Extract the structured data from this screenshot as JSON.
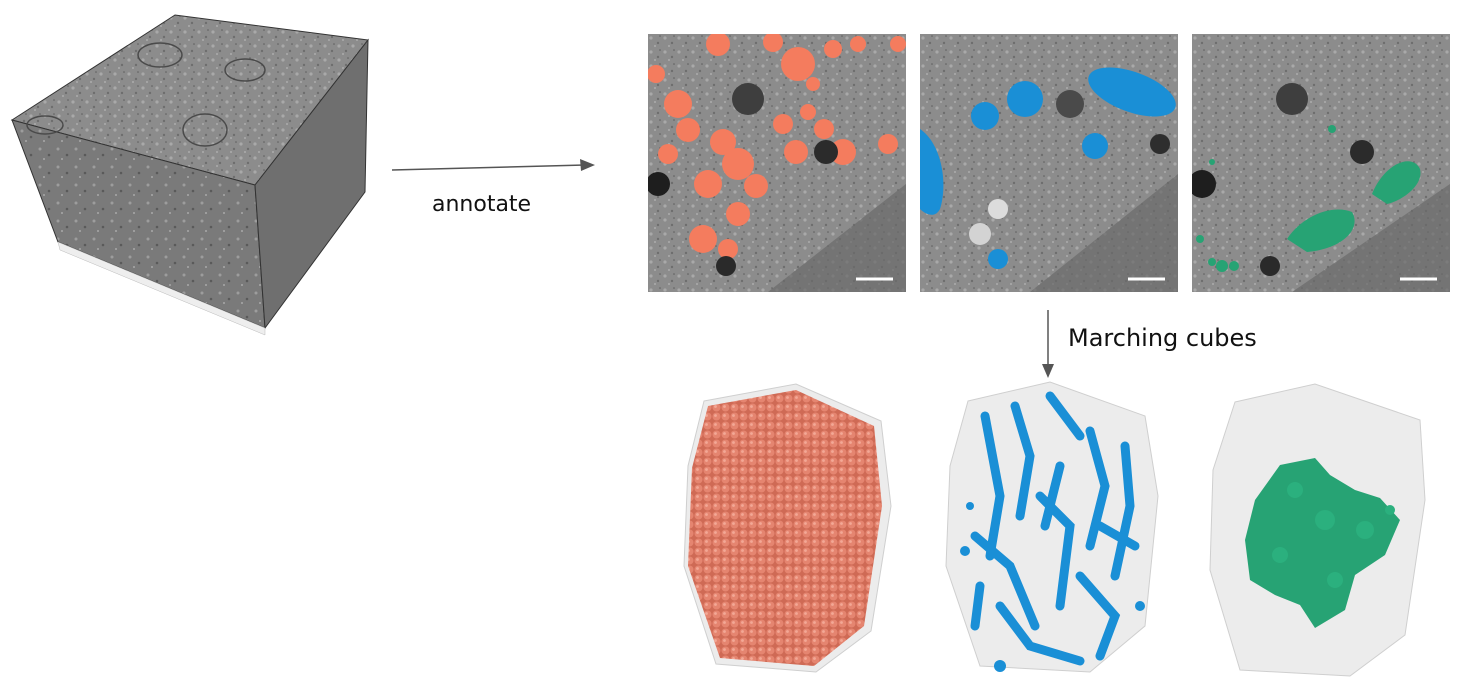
{
  "labels": {
    "annotate": "annotate",
    "marching": "Marching cubes"
  },
  "colors": {
    "vesicles": "#f47c5e",
    "mitochondria": "#1a8fd6",
    "third_class": "#27a374",
    "arrow": "#555555",
    "em_gray": "#9a9a9a"
  },
  "panels": [
    {
      "name": "em-panel-vesicles",
      "overlay": "vesicles"
    },
    {
      "name": "em-panel-mitochondria",
      "overlay": "mitochondria"
    },
    {
      "name": "em-panel-third",
      "overlay": "third_class"
    }
  ],
  "renders": [
    {
      "name": "render-vesicles",
      "structure": "vesicles"
    },
    {
      "name": "render-mitochondria",
      "structure": "mitochondria"
    },
    {
      "name": "render-third",
      "structure": "third_class"
    }
  ]
}
